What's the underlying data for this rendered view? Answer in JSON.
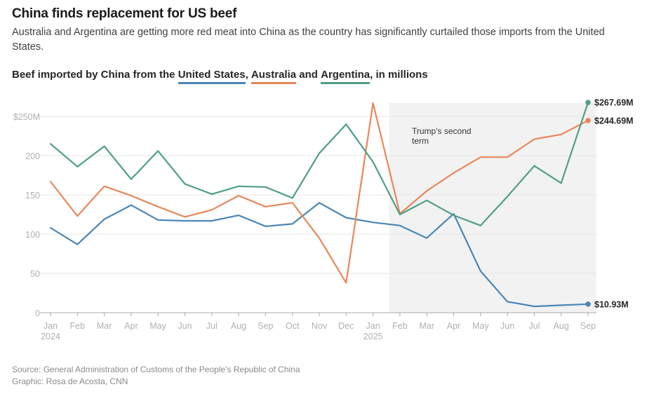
{
  "header": {
    "title": "China finds replacement for US beef",
    "subtitle": "Australia and Argentina are getting more red meat into China as the country has significantly curtailed those imports from the United States."
  },
  "chart_heading": {
    "prefix": "Beef imported by China from the ",
    "us": "United States",
    "sep1": ", ",
    "au": "Australia",
    "sep2": " and ",
    "ar": "Argentina",
    "suffix": ", in millions"
  },
  "colors": {
    "us": "#4a86b5",
    "australia": "#e8875a",
    "argentina": "#4f9e87",
    "shade": "#f2f2f2",
    "grid": "#e6e6e6",
    "axis": "#aaaaaa",
    "tick_text": "#b0b0b0"
  },
  "chart_data": {
    "type": "line",
    "title": "Beef imported by China from the United States, Australia and Argentina, in millions",
    "xlabel": "",
    "ylabel": "",
    "ylim": [
      0,
      270
    ],
    "yticks": [
      0,
      50,
      100,
      150,
      200,
      250
    ],
    "ytick_labels": [
      "0",
      "50",
      "100",
      "150",
      "200",
      "$250M"
    ],
    "grid": true,
    "categories": [
      "Jan 2024",
      "Feb",
      "Mar",
      "Apr",
      "May",
      "Jun",
      "Jul",
      "Aug",
      "Sep",
      "Oct",
      "Nov",
      "Dec",
      "Jan 2025",
      "Feb",
      "Mar",
      "Apr",
      "May",
      "Jun",
      "Jul",
      "Aug",
      "Sep"
    ],
    "xtick_labels": [
      {
        "month": "Jan",
        "year": "2024"
      },
      {
        "month": "Feb"
      },
      {
        "month": "Mar"
      },
      {
        "month": "Apr"
      },
      {
        "month": "May"
      },
      {
        "month": "Jun"
      },
      {
        "month": "Jul"
      },
      {
        "month": "Aug"
      },
      {
        "month": "Sep"
      },
      {
        "month": "Oct"
      },
      {
        "month": "Nov"
      },
      {
        "month": "Dec"
      },
      {
        "month": "Jan",
        "year": "2025"
      },
      {
        "month": "Feb"
      },
      {
        "month": "Mar"
      },
      {
        "month": "Apr"
      },
      {
        "month": "May"
      },
      {
        "month": "Jun"
      },
      {
        "month": "Jul"
      },
      {
        "month": "Aug"
      },
      {
        "month": "Sep"
      }
    ],
    "series": [
      {
        "key": "us",
        "name": "United States",
        "values": [
          108,
          87,
          119,
          137,
          118,
          117,
          117,
          124,
          110,
          113,
          140,
          121,
          115,
          111,
          95,
          126,
          53,
          14,
          8,
          9.5,
          10.93
        ],
        "end_label": "$10.93M"
      },
      {
        "key": "australia",
        "name": "Australia",
        "values": [
          167,
          123,
          161,
          149,
          135,
          122,
          131,
          149,
          135,
          140,
          95,
          38,
          267,
          126,
          155,
          178,
          198,
          198,
          221,
          227,
          244.69
        ],
        "end_label": "$244.69M"
      },
      {
        "key": "argentina",
        "name": "Argentina",
        "values": [
          215,
          186,
          212,
          170,
          206,
          164,
          151,
          161,
          160,
          146,
          203,
          240,
          192,
          125,
          143,
          124,
          111,
          148,
          187,
          165,
          267.69
        ],
        "end_label": "$267.69M"
      }
    ],
    "annotation": {
      "label_line1": "Trump's second",
      "label_line2": "term",
      "shaded_from_index": 12.6,
      "shaded_to_index": 20.3
    }
  },
  "footer": {
    "source": "Source: General Administration of Customs of the People's Republic of China",
    "graphic": "Graphic: Rosa de Acosta, CNN"
  }
}
